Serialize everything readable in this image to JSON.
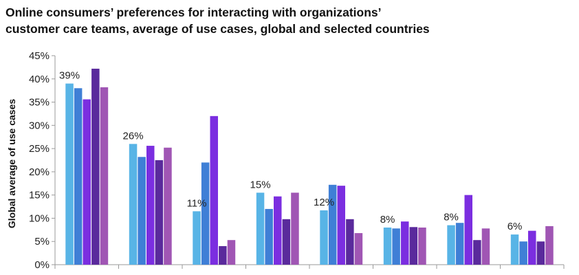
{
  "chart_data": {
    "type": "bar",
    "title": "Online consumers’ preferences for interacting with organizations’",
    "subtitle": "customer care teams, average of use cases, global and selected countries",
    "xlabel": "",
    "ylabel": "Global average of use cases",
    "ylim": [
      0,
      45
    ],
    "yticks": [
      "0%",
      "5%",
      "10%",
      "15%",
      "20%",
      "25%",
      "30%",
      "35%",
      "40%",
      "45%"
    ],
    "grid": false,
    "legend": "none",
    "categories": [
      "",
      "",
      "",
      "",
      "",
      "",
      "",
      ""
    ],
    "series": [
      {
        "values": [
          39,
          26,
          11.5,
          15.5,
          11.7,
          8,
          8.5,
          6.5
        ]
      },
      {
        "values": [
          38,
          23.2,
          22,
          12,
          17.2,
          7.8,
          9,
          5
        ]
      },
      {
        "values": [
          35.6,
          25.6,
          32,
          14.7,
          17,
          9.3,
          15,
          7.3
        ]
      },
      {
        "values": [
          42.2,
          22.5,
          4,
          9.8,
          9.8,
          8.1,
          5.3,
          5
        ]
      },
      {
        "values": [
          38.2,
          25.2,
          5.3,
          15.5,
          6.8,
          8,
          7.8,
          8.3
        ]
      }
    ],
    "data_labels": [
      "39%",
      "26%",
      "11%",
      "15%",
      "12%",
      "8%",
      "8%",
      "6%"
    ],
    "colors": [
      "#58b4e6",
      "#3f7fd6",
      "#7b2ee0",
      "#5a2a9c",
      "#a056b4"
    ]
  }
}
